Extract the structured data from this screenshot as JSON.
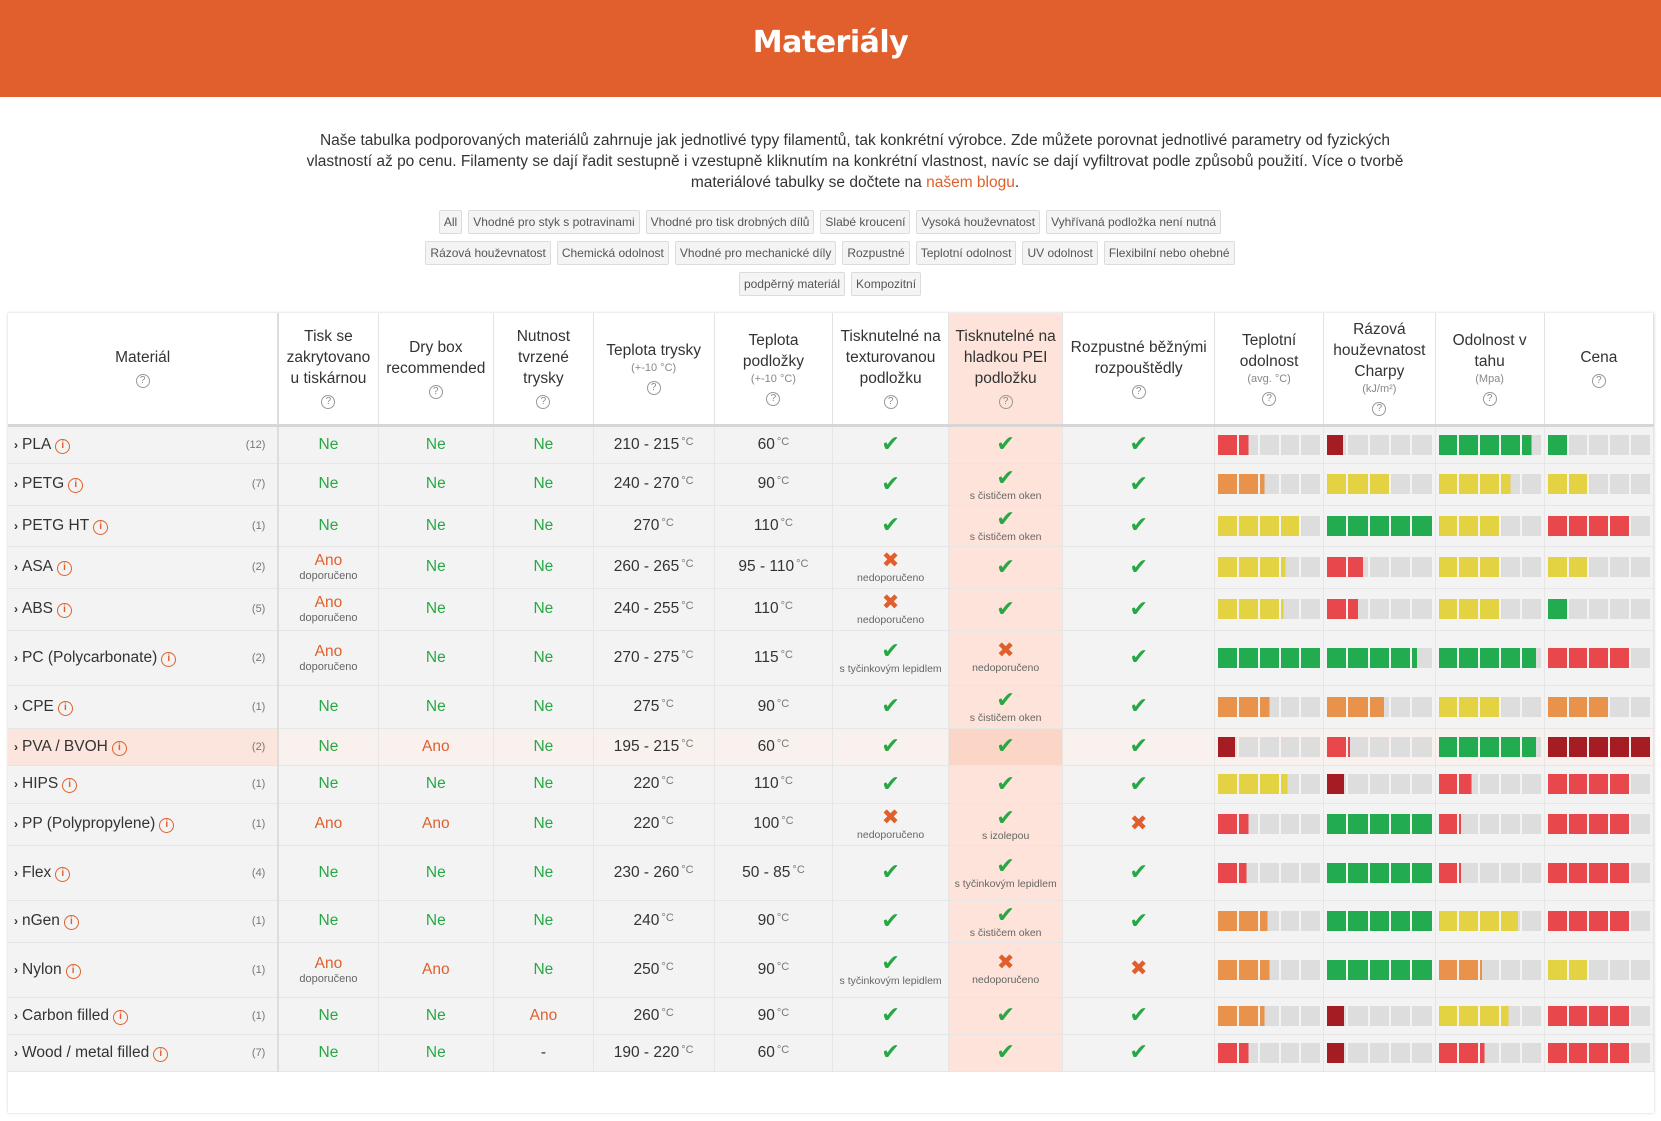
{
  "page": {
    "title": "Materiály",
    "intro": "Naše tabulka podporovaných materiálů zahrnuje jak jednotlivé typy filamentů, tak konkrétní výrobce. Zde můžete porovnat jednotlivé parametry od fyzických vlastností až po cenu. Filamenty se dají řadit sestupně i vzestupně kliknutím na konkrétní vlastnost, navíc se dají vyfiltrovat podle způsobů použití. Více o tvorbě materiálové tabulky se dočtete na",
    "intro_link": "našem blogu",
    "intro_end": "."
  },
  "filters": [
    [
      "All",
      "Vhodné pro styk s potravinami",
      "Vhodné pro tisk drobných dílů",
      "Slabé kroucení",
      "Vysoká houževnatost",
      "Vyhřívaná podložka není nutná"
    ],
    [
      "Rázová houževnatost",
      "Chemická odolnost",
      "Vhodné pro mechanické díly",
      "Rozpustné",
      "Teplotní odolnost",
      "UV odolnost",
      "Flexibilní nebo ohebné"
    ],
    [
      "podpěrný materiál",
      "Kompozitní"
    ]
  ],
  "colors": {
    "accent": "#e05f2c",
    "green": "#27a844",
    "bar_red": "#e8474c",
    "bar_darkred": "#a51d22",
    "bar_orange": "#e8924c",
    "bar_yellow": "#e3d343",
    "bar_green": "#23ab50",
    "bar_empty": "#dddddd"
  },
  "columns": {
    "material": "Materiál",
    "enclosure": "Tisk se zakrytovano u tiskárnou",
    "drybox": "Dry box recommended",
    "hardened": "Nutnost tvrzené trysky",
    "nozzle": "Teplota trysky",
    "nozzle_sub": "(+-10 °C)",
    "bed": "Teplota podložky",
    "bed_sub": "(+-10 °C)",
    "textured": "Tisknutelné na texturovanou podložku",
    "smooth": "Tisknutelné na hladkou PEI podložku",
    "soluble": "Rozpustné běžnými rozpouštědly",
    "heat": "Teplotní odolnost",
    "heat_sub": "(avg. °C)",
    "impact": "Rázová houževnatost Charpy",
    "impact_sub": "(kJ/m²)",
    "tensile": "Odolnost v tahu",
    "tensile_sub": "(Mpa)",
    "price": "Cena"
  },
  "unit": "°C",
  "recommended": "doporučeno",
  "rows": [
    {
      "name": "PLA",
      "count": "(12)",
      "enc": "Ne",
      "dry": "Ne",
      "hard": "Ne",
      "nozzle": "210 - 215",
      "bed": "60",
      "tex": {
        "ok": true,
        "note": ""
      },
      "smooth": {
        "ok": true,
        "note": ""
      },
      "sol": true,
      "heat": {
        "level": 0.3,
        "color": "red"
      },
      "impact": {
        "level": 0.17,
        "color": "darkred"
      },
      "tensile": {
        "level": 0.9,
        "color": "green"
      },
      "price": {
        "level": 0.2,
        "color": "green"
      }
    },
    {
      "name": "PETG",
      "count": "(7)",
      "enc": "Ne",
      "dry": "Ne",
      "hard": "Ne",
      "nozzle": "240 - 270",
      "bed": "90",
      "tex": {
        "ok": true,
        "note": ""
      },
      "smooth": {
        "ok": true,
        "note": "s čističem oken"
      },
      "sol": true,
      "heat": {
        "level": 0.45,
        "color": "orange"
      },
      "impact": {
        "level": 0.6,
        "color": "yellow"
      },
      "tensile": {
        "level": 0.7,
        "color": "yellow"
      },
      "price": {
        "level": 0.4,
        "color": "yellow"
      }
    },
    {
      "name": "PETG HT",
      "count": "(1)",
      "enc": "Ne",
      "dry": "Ne",
      "hard": "Ne",
      "nozzle": "270",
      "bed": "110",
      "tex": {
        "ok": true,
        "note": ""
      },
      "smooth": {
        "ok": true,
        "note": "s čističem oken"
      },
      "sol": true,
      "heat": {
        "level": 0.8,
        "color": "yellow"
      },
      "impact": {
        "level": 1,
        "color": "green"
      },
      "tensile": {
        "level": 0.6,
        "color": "yellow"
      },
      "price": {
        "level": 0.8,
        "color": "red"
      }
    },
    {
      "name": "ASA",
      "count": "(2)",
      "enc": "Ano",
      "encRec": true,
      "dry": "Ne",
      "hard": "Ne",
      "nozzle": "260 - 265",
      "bed": "95 - 110",
      "tex": {
        "ok": false,
        "note": "nedoporučeno"
      },
      "smooth": {
        "ok": true,
        "note": ""
      },
      "sol": true,
      "heat": {
        "level": 0.65,
        "color": "yellow"
      },
      "impact": {
        "level": 0.35,
        "color": "red"
      },
      "tensile": {
        "level": 0.6,
        "color": "yellow"
      },
      "price": {
        "level": 0.4,
        "color": "yellow"
      }
    },
    {
      "name": "ABS",
      "count": "(5)",
      "enc": "Ano",
      "encRec": true,
      "dry": "Ne",
      "hard": "Ne",
      "nozzle": "240 - 255",
      "bed": "110",
      "tex": {
        "ok": false,
        "note": "nedoporučeno"
      },
      "smooth": {
        "ok": true,
        "note": ""
      },
      "sol": true,
      "heat": {
        "level": 0.63,
        "color": "yellow"
      },
      "impact": {
        "level": 0.3,
        "color": "red"
      },
      "tensile": {
        "level": 0.6,
        "color": "yellow"
      },
      "price": {
        "level": 0.2,
        "color": "green"
      }
    },
    {
      "name": "PC (Polycarbonate)",
      "count": "(2)",
      "enc": "Ano",
      "encRec": true,
      "dry": "Ne",
      "hard": "Ne",
      "nozzle": "270 - 275",
      "bed": "115",
      "tex": {
        "ok": true,
        "note": "s tyčinkovým lepidlem"
      },
      "smooth": {
        "ok": false,
        "note": "nedoporučeno"
      },
      "sol": true,
      "heat": {
        "level": 1,
        "color": "green"
      },
      "impact": {
        "level": 0.85,
        "color": "green"
      },
      "tensile": {
        "level": 0.95,
        "color": "green"
      },
      "price": {
        "level": 0.8,
        "color": "red"
      }
    },
    {
      "name": "CPE",
      "count": "(1)",
      "enc": "Ne",
      "dry": "Ne",
      "hard": "Ne",
      "nozzle": "275",
      "bed": "90",
      "tex": {
        "ok": true,
        "note": ""
      },
      "smooth": {
        "ok": true,
        "note": "s čističem oken"
      },
      "sol": true,
      "heat": {
        "level": 0.5,
        "color": "orange"
      },
      "impact": {
        "level": 0.55,
        "color": "orange"
      },
      "tensile": {
        "level": 0.6,
        "color": "yellow"
      },
      "price": {
        "level": 0.6,
        "color": "orange"
      }
    },
    {
      "name": "PVA / BVOH",
      "count": "(2)",
      "enc": "Ne",
      "dry": "Ano",
      "hard": "Ne",
      "nozzle": "195 - 215",
      "bed": "60",
      "highlight": true,
      "tex": {
        "ok": true,
        "note": ""
      },
      "smooth": {
        "ok": true,
        "note": ""
      },
      "sol": true,
      "heat": {
        "level": 0.18,
        "color": "darkred"
      },
      "impact": {
        "level": 0.22,
        "color": "red"
      },
      "tensile": {
        "level": 0.95,
        "color": "green"
      },
      "price": {
        "level": 1,
        "color": "darkred"
      }
    },
    {
      "name": "HIPS",
      "count": "(1)",
      "enc": "Ne",
      "dry": "Ne",
      "hard": "Ne",
      "nozzle": "220",
      "bed": "110",
      "tex": {
        "ok": true,
        "note": ""
      },
      "smooth": {
        "ok": true,
        "note": ""
      },
      "sol": true,
      "heat": {
        "level": 0.67,
        "color": "yellow"
      },
      "impact": {
        "level": 0.18,
        "color": "darkred"
      },
      "tensile": {
        "level": 0.33,
        "color": "red"
      },
      "price": {
        "level": 0.8,
        "color": "red"
      }
    },
    {
      "name": "PP (Polypropylene)",
      "count": "(1)",
      "enc": "Ano",
      "dry": "Ano",
      "hard": "Ne",
      "nozzle": "220",
      "bed": "100",
      "tex": {
        "ok": false,
        "note": "nedoporučeno"
      },
      "smooth": {
        "ok": true,
        "note": "s izolepou"
      },
      "sol": false,
      "heat": {
        "level": 0.3,
        "color": "red"
      },
      "impact": {
        "level": 1,
        "color": "green"
      },
      "tensile": {
        "level": 0.22,
        "color": "red"
      },
      "price": {
        "level": 0.8,
        "color": "red"
      }
    },
    {
      "name": "Flex",
      "count": "(4)",
      "enc": "Ne",
      "dry": "Ne",
      "hard": "Ne",
      "nozzle": "230 - 260",
      "bed": "50 - 85",
      "tex": {
        "ok": true,
        "note": ""
      },
      "smooth": {
        "ok": true,
        "note": "s tyčinkovým lepidlem"
      },
      "sol": true,
      "heat": {
        "level": 0.28,
        "color": "red"
      },
      "impact": {
        "level": 1,
        "color": "green"
      },
      "tensile": {
        "level": 0.22,
        "color": "red"
      },
      "price": {
        "level": 0.8,
        "color": "red"
      }
    },
    {
      "name": "nGen",
      "count": "(1)",
      "enc": "Ne",
      "dry": "Ne",
      "hard": "Ne",
      "nozzle": "240",
      "bed": "90",
      "tex": {
        "ok": true,
        "note": ""
      },
      "smooth": {
        "ok": true,
        "note": "s čističem oken"
      },
      "sol": true,
      "heat": {
        "level": 0.48,
        "color": "orange"
      },
      "impact": {
        "level": 1,
        "color": "green"
      },
      "tensile": {
        "level": 0.78,
        "color": "yellow"
      },
      "price": {
        "level": 0.8,
        "color": "red"
      }
    },
    {
      "name": "Nylon",
      "count": "(1)",
      "enc": "Ano",
      "encRec": true,
      "dry": "Ano",
      "hard": "Ne",
      "nozzle": "250",
      "bed": "90",
      "tex": {
        "ok": true,
        "note": "s tyčinkovým lepidlem"
      },
      "smooth": {
        "ok": false,
        "note": "nedoporučeno"
      },
      "sol": false,
      "heat": {
        "level": 0.5,
        "color": "orange"
      },
      "impact": {
        "level": 1,
        "color": "green"
      },
      "tensile": {
        "level": 0.42,
        "color": "orange"
      },
      "price": {
        "level": 0.4,
        "color": "yellow"
      }
    },
    {
      "name": "Carbon filled",
      "count": "(1)",
      "enc": "Ne",
      "dry": "Ne",
      "hard": "Ano",
      "nozzle": "260",
      "bed": "90",
      "tex": {
        "ok": true,
        "note": ""
      },
      "smooth": {
        "ok": true,
        "note": ""
      },
      "sol": true,
      "heat": {
        "level": 0.45,
        "color": "orange"
      },
      "impact": {
        "level": 0.18,
        "color": "darkred"
      },
      "tensile": {
        "level": 0.68,
        "color": "yellow"
      },
      "price": {
        "level": 0.8,
        "color": "red"
      }
    },
    {
      "name": "Wood / metal filled",
      "count": "(7)",
      "enc": "Ne",
      "dry": "Ne",
      "hard": "-",
      "nozzle": "190 - 220",
      "bed": "60",
      "tex": {
        "ok": true,
        "note": ""
      },
      "smooth": {
        "ok": true,
        "note": ""
      },
      "sol": true,
      "heat": {
        "level": 0.3,
        "color": "red"
      },
      "impact": {
        "level": 0.18,
        "color": "darkred"
      },
      "tensile": {
        "level": 0.45,
        "color": "red"
      },
      "price": {
        "level": 0.8,
        "color": "red"
      }
    }
  ]
}
